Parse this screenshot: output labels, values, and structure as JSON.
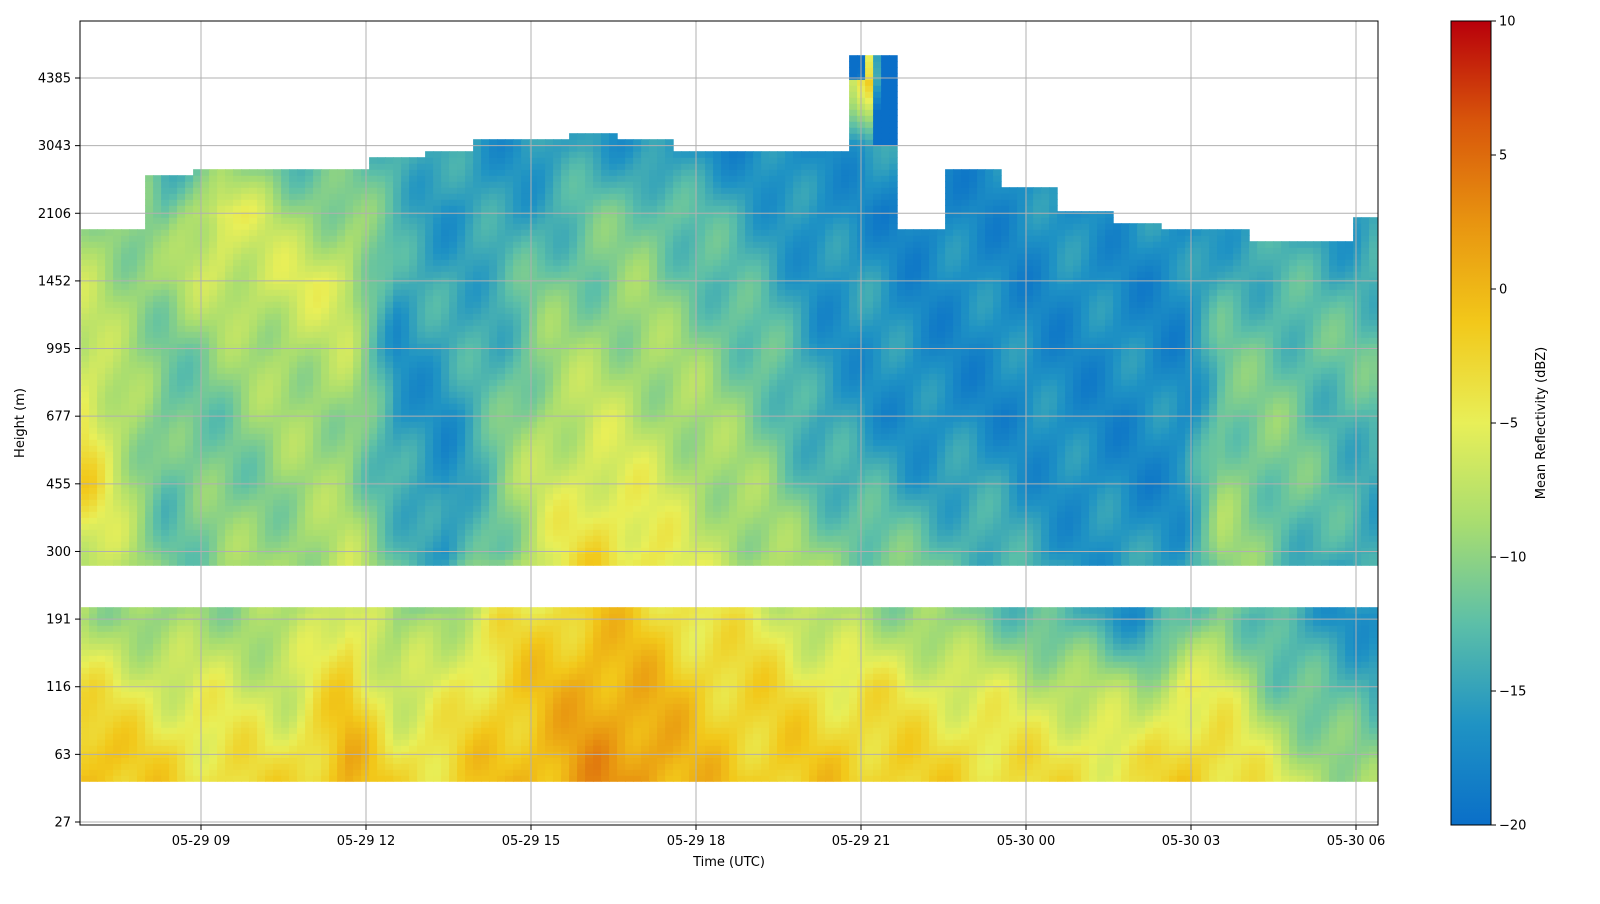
{
  "chart_data": {
    "type": "heatmap",
    "title": "",
    "xlabel": "Time (UTC)",
    "ylabel": "Height (m)",
    "colorbar_label": "Mean Reflectivity (dBZ)",
    "colormap": [
      "#0a6fc8",
      "#1f93c4",
      "#5cbfa8",
      "#a8dd70",
      "#e8ef58",
      "#f2c81a",
      "#e89410",
      "#d8560b",
      "#b8000b"
    ],
    "clim": [
      -20,
      10
    ],
    "colorbar_ticks": [
      "10",
      "5",
      "0",
      "−5",
      "−10",
      "−15",
      "−20"
    ],
    "colorbar_tick_values": [
      10,
      5,
      0,
      -5,
      -10,
      -15,
      -20
    ],
    "x_unit": "hours since 05-29 00:00 UTC",
    "xlim": [
      6.8,
      30.4
    ],
    "x_ticks": [
      {
        "label": "05-29 09",
        "value": 9
      },
      {
        "label": "05-29 12",
        "value": 12
      },
      {
        "label": "05-29 15",
        "value": 15
      },
      {
        "label": "05-29 18",
        "value": 18
      },
      {
        "label": "05-29 21",
        "value": 21
      },
      {
        "label": "05-30 00",
        "value": 24
      },
      {
        "label": "05-30 03",
        "value": 27
      },
      {
        "label": "05-30 06",
        "value": 30
      }
    ],
    "y_ticks": [
      "27",
      "63",
      "116",
      "191",
      "300",
      "455",
      "677",
      "995",
      "1452",
      "2106",
      "3043",
      "4385"
    ],
    "y_tick_values": [
      27,
      63,
      116,
      191,
      300,
      455,
      677,
      995,
      1452,
      2106,
      3043,
      4385
    ],
    "grid": true,
    "columns": [
      {
        "time": 6.9,
        "top": 1950,
        "v": [
          0,
          0,
          -4,
          -9,
          -6,
          -3,
          -4,
          -7,
          -8,
          -9,
          -99,
          -99
        ]
      },
      {
        "time": 7.5,
        "top": 1950,
        "v": [
          -1,
          -2,
          -5,
          -9,
          -8,
          -7,
          -8,
          -9,
          -9,
          -10,
          -99,
          -99
        ]
      },
      {
        "time": 8.3,
        "top": 2600,
        "v": [
          -2,
          -3,
          -6,
          -10,
          -12,
          -12,
          -12,
          -11,
          -9,
          -12,
          -14,
          -99
        ]
      },
      {
        "time": 9.3,
        "top": 2700,
        "v": [
          -2,
          -4,
          -6,
          -9,
          -10,
          -11,
          -11,
          -10,
          -7,
          -4,
          -13,
          -99
        ]
      },
      {
        "time": 10.5,
        "top": 2700,
        "v": [
          -2,
          -4,
          -7,
          -9,
          -9,
          -10,
          -9,
          -8,
          -6,
          -9,
          -13,
          -11
        ]
      },
      {
        "time": 11.6,
        "top": 2650,
        "v": [
          1,
          0,
          -2,
          -4,
          -8,
          -9,
          -9,
          -8,
          -6,
          -10,
          -13,
          -10
        ]
      },
      {
        "time": 12.5,
        "top": 2900,
        "v": [
          -2,
          -4,
          -7,
          -10,
          -12,
          -14,
          -16,
          -16,
          -15,
          -13,
          -13,
          -99
        ]
      },
      {
        "time": 13.4,
        "top": 3000,
        "v": [
          -2,
          -3,
          -6,
          -8,
          -16,
          -17,
          -16,
          -15,
          -14,
          -16,
          -15,
          -99
        ]
      },
      {
        "time": 14.4,
        "top": 3100,
        "v": [
          -1,
          -1,
          -2,
          -4,
          -11,
          -10,
          -12,
          -13,
          -14,
          -15,
          -16,
          -11
        ]
      },
      {
        "time": 15.2,
        "top": 3100,
        "v": [
          1,
          0,
          -1,
          -3,
          -6,
          -7,
          -8,
          -10,
          -11,
          -14,
          -16,
          -11
        ]
      },
      {
        "time": 16.1,
        "top": 3300,
        "v": [
          3,
          2,
          1,
          -1,
          -3,
          -5,
          -7,
          -9,
          -11,
          -12,
          -15,
          -14
        ]
      },
      {
        "time": 17.0,
        "top": 3200,
        "v": [
          2,
          2,
          0,
          -2,
          -4,
          -6,
          -8,
          -9,
          -10,
          -11,
          -16,
          -16
        ]
      },
      {
        "time": 18.0,
        "top": 3000,
        "v": [
          0,
          -1,
          -2,
          -4,
          -7,
          -8,
          -9,
          -10,
          -12,
          -13,
          -17,
          -99
        ]
      },
      {
        "time": 19.2,
        "top": 3000,
        "v": [
          -1,
          -2,
          -3,
          -5,
          -9,
          -10,
          -11,
          -12,
          -14,
          -15,
          -17,
          -99
        ]
      },
      {
        "time": 20.2,
        "top": 2950,
        "v": [
          -1,
          -2,
          -4,
          -8,
          -10,
          -13,
          -15,
          -16,
          -16,
          -17,
          -17,
          -99
        ]
      },
      {
        "time": 21.1,
        "top": 5000,
        "v": [
          -1,
          -2,
          -4,
          -9,
          -11,
          -14,
          -16,
          -16,
          -16,
          -17,
          -15,
          -2
        ]
      },
      {
        "time": 22.0,
        "top": 1950,
        "v": [
          -2,
          -3,
          -5,
          -9,
          -12,
          -15,
          -17,
          -17,
          -17,
          -18,
          -99,
          -99
        ]
      },
      {
        "time": 23.0,
        "top": 2650,
        "v": [
          -2,
          -3,
          -6,
          -11,
          -13,
          -15,
          -17,
          -17,
          -17,
          -17,
          -17,
          -99
        ]
      },
      {
        "time": 24.0,
        "top": 2400,
        "v": [
          -3,
          -4,
          -7,
          -12,
          -15,
          -16,
          -17,
          -17,
          -17,
          -17,
          -99,
          -99
        ]
      },
      {
        "time": 25.0,
        "top": 2100,
        "v": [
          -3,
          -4,
          -8,
          -14,
          -16,
          -17,
          -17,
          -17,
          -17,
          -16,
          -99,
          -99
        ]
      },
      {
        "time": 26.0,
        "top": 2000,
        "v": [
          -3,
          -5,
          -9,
          -16,
          -16,
          -17,
          -17,
          -17,
          -17,
          -16,
          -99,
          -99
        ]
      },
      {
        "time": 26.8,
        "top": 1900,
        "v": [
          -1,
          -2,
          -5,
          -13,
          -15,
          -17,
          -17,
          -17,
          -17,
          -17,
          -99,
          -99
        ]
      },
      {
        "time": 27.5,
        "top": 1950,
        "v": [
          -2,
          -3,
          -6,
          -10,
          -9,
          -10,
          -11,
          -12,
          -14,
          -15,
          -99,
          -99
        ]
      },
      {
        "time": 28.5,
        "top": 1800,
        "v": [
          -3,
          -7,
          -11,
          -14,
          -12,
          -11,
          -11,
          -12,
          -13,
          -15,
          -99,
          -99
        ]
      },
      {
        "time": 29.5,
        "top": 1800,
        "v": [
          -6,
          -10,
          -13,
          -16,
          -14,
          -13,
          -13,
          -12,
          -14,
          -16,
          -99,
          -99
        ]
      },
      {
        "time": 30.3,
        "top": 2050,
        "v": [
          -8,
          -11,
          -14,
          -16,
          -15,
          -14,
          -13,
          -12,
          -13,
          -15,
          -99,
          -99
        ]
      }
    ],
    "data_gaps": {
      "height_gap_m": [
        205,
        270
      ],
      "lowest_height_m": 45
    }
  }
}
